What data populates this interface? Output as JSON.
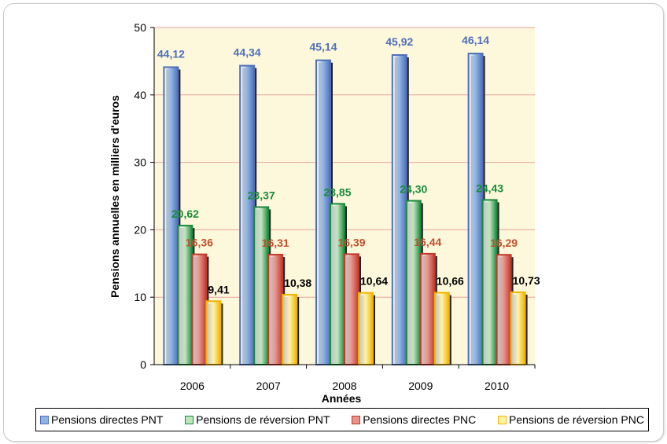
{
  "chart_data": {
    "type": "bar",
    "categories": [
      "2006",
      "2007",
      "2008",
      "2009",
      "2010"
    ],
    "series": [
      {
        "name": "Pensions directes PNT",
        "values": [
          44.12,
          44.34,
          45.14,
          45.92,
          46.14
        ],
        "labels": [
          "44,12",
          "44,34",
          "45,14",
          "45,92",
          "46,14"
        ],
        "fill": "#8fb4e3",
        "stroke": "#4f6fb8",
        "label_color": "#4f6fb8"
      },
      {
        "name": "Pensions de réversion PNT",
        "values": [
          20.62,
          23.37,
          23.85,
          24.3,
          24.43
        ],
        "labels": [
          "20,62",
          "23,37",
          "23,85",
          "24,30",
          "24,43"
        ],
        "fill": "#bfe3bf",
        "stroke": "#1a8a3a",
        "label_color": "#1a8a3a"
      },
      {
        "name": "Pensions directes PNC",
        "values": [
          16.36,
          16.31,
          16.39,
          16.44,
          16.29
        ],
        "labels": [
          "16,36",
          "16,31",
          "16,39",
          "16,44",
          "16,29"
        ],
        "fill": "#e8928a",
        "stroke": "#c0392b",
        "label_color": "#c0502b"
      },
      {
        "name": "Pensions de réversion PNC",
        "values": [
          9.41,
          10.38,
          10.64,
          10.66,
          10.73
        ],
        "labels": [
          "9,41",
          "10,38",
          "10,64",
          "10,66",
          "10,73"
        ],
        "fill": "#fff2a8",
        "stroke": "#f0b400",
        "label_color": "#000000"
      }
    ],
    "xlabel": "Années",
    "ylabel": "Pensions annuelles en milliers d'euros",
    "ylim": [
      0,
      50
    ],
    "yticks": [
      "0",
      "10",
      "20",
      "30",
      "40",
      "50"
    ],
    "grid": true,
    "plot_background": "#fdf8dc",
    "grid_color": "#e8a0a0",
    "legend_position": "bottom"
  }
}
